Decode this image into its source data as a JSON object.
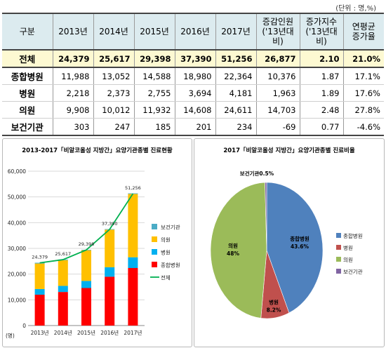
{
  "unit_note": "(단위 : 명,%)",
  "table": {
    "headers": [
      "구분",
      "2013년",
      "2014년",
      "2015년",
      "2016년",
      "2017년",
      "증감인원\n('13년대비)",
      "증가지수\n('13년대비)",
      "연평균\n증가율"
    ],
    "rows": [
      {
        "label": "전체",
        "cells": [
          "24,379",
          "25,617",
          "29,398",
          "37,390",
          "51,256",
          "26,877",
          "2.10",
          "21.0%"
        ]
      },
      {
        "label": "종합병원",
        "cells": [
          "11,988",
          "13,052",
          "14,588",
          "18,980",
          "22,364",
          "10,376",
          "1.87",
          "17.1%"
        ]
      },
      {
        "label": "병원",
        "cells": [
          "2,218",
          "2,373",
          "2,755",
          "3,694",
          "4,181",
          "1,963",
          "1.89",
          "17.6%"
        ]
      },
      {
        "label": "의원",
        "cells": [
          "9,908",
          "10,012",
          "11,932",
          "14,608",
          "24,611",
          "14,703",
          "2.48",
          "27.8%"
        ]
      },
      {
        "label": "보건기관",
        "cells": [
          "303",
          "247",
          "185",
          "201",
          "234",
          "-69",
          "0.77",
          "-4.6%"
        ]
      }
    ]
  },
  "chart_data": [
    {
      "type": "bar",
      "stacked": true,
      "title": "2013-2017「비알코올성 지방간」요양기관종별 진료현황",
      "unit_label": "(명)",
      "categories": [
        "2013년",
        "2014년",
        "2015년",
        "2016년",
        "2017년"
      ],
      "ylim": [
        0,
        60000
      ],
      "yticks": [
        0,
        10000,
        20000,
        30000,
        40000,
        50000,
        60000
      ],
      "ytick_labels": [
        "0",
        "10,000",
        "20,000",
        "30,000",
        "40,000",
        "50,000",
        "60,000"
      ],
      "series": [
        {
          "name": "종합병원",
          "color": "#ff0000",
          "values": [
            11988,
            13052,
            14588,
            18980,
            22364
          ]
        },
        {
          "name": "병원",
          "color": "#00b0f0",
          "values": [
            2218,
            2373,
            2755,
            3694,
            4181
          ]
        },
        {
          "name": "의원",
          "color": "#ffc000",
          "values": [
            9908,
            10012,
            11932,
            14608,
            24611
          ]
        },
        {
          "name": "보건기관",
          "color": "#4bacc6",
          "values": [
            303,
            247,
            185,
            201,
            234
          ]
        }
      ],
      "line": {
        "name": "전체",
        "color": "#00b050",
        "values": [
          24379,
          25617,
          29398,
          37390,
          51256
        ],
        "labels": [
          "24,379",
          "25,617",
          "29,398",
          "37,390",
          "51,256"
        ]
      },
      "legend_order": [
        "보건기관",
        "의원",
        "병원",
        "종합병원",
        "전체"
      ],
      "legend_position": "right",
      "grid": true
    },
    {
      "type": "pie",
      "title": "2017「비알코올성 지방간」요양기관종별 진료비율",
      "slices": [
        {
          "name": "종합병원",
          "value": 43.6,
          "label": "43.6%",
          "color": "#4f81bd"
        },
        {
          "name": "병원",
          "value": 8.2,
          "label": "8.2%",
          "color": "#c0504d"
        },
        {
          "name": "의원",
          "value": 48.0,
          "label": "48%",
          "color": "#9bbb59"
        },
        {
          "name": "보건기관",
          "value": 0.5,
          "label": "0.5%",
          "color": "#8064a2"
        }
      ],
      "legend_order": [
        "종합병원",
        "병원",
        "의원",
        "보건기관"
      ],
      "legend_position": "right"
    }
  ]
}
